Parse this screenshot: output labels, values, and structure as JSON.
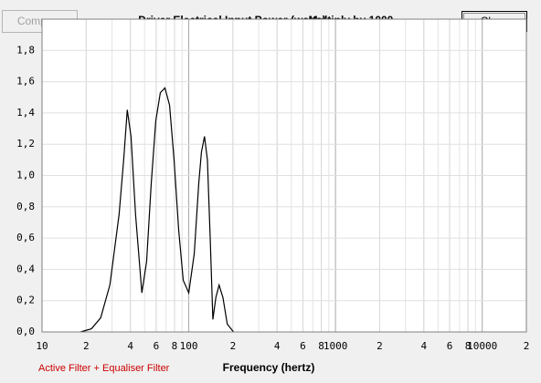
{
  "buttons": {
    "compare": "Compare",
    "close": "Close"
  },
  "chart_data": {
    "type": "line",
    "title": "Driver Electrical Input Power (watts)",
    "subtitle": "Multiply by 1000",
    "x_label": "Frequency (hertz)",
    "x_log": true,
    "grid": true,
    "xlim": [
      10,
      20000
    ],
    "ylim": [
      0,
      2.0
    ],
    "xticks": [
      10,
      {
        "value": 20,
        "label": "2"
      },
      {
        "value": 40,
        "label": "4"
      },
      {
        "value": 60,
        "label": "6"
      },
      {
        "value": 80,
        "label": "8"
      },
      100,
      {
        "value": 200,
        "label": "2"
      },
      {
        "value": 400,
        "label": "4"
      },
      {
        "value": 600,
        "label": "6"
      },
      {
        "value": 800,
        "label": "8"
      },
      1000,
      {
        "value": 2000,
        "label": "2"
      },
      {
        "value": 4000,
        "label": "4"
      },
      {
        "value": 6000,
        "label": "6"
      },
      {
        "value": 8000,
        "label": "8"
      },
      10000,
      {
        "value": 20000,
        "label": "2"
      }
    ],
    "yticks": [
      {
        "value": 0,
        "label": "0,0"
      },
      {
        "value": 0.2,
        "label": "0,2"
      },
      {
        "value": 0.4,
        "label": "0,4"
      },
      {
        "value": 0.6,
        "label": "0,6"
      },
      {
        "value": 0.8,
        "label": "0,8"
      },
      {
        "value": 1.0,
        "label": "1,0"
      },
      {
        "value": 1.2,
        "label": "1,2"
      },
      {
        "value": 1.4,
        "label": "1,4"
      },
      {
        "value": 1.6,
        "label": "1,6"
      },
      {
        "value": 1.8,
        "label": "1,8"
      }
    ],
    "legend_text_color": "#cc0000",
    "x": [
      18.3,
      21.7,
      25.1,
      29.0,
      33.5,
      36.0,
      38.1,
      40.4,
      43.4,
      47.9,
      51.6,
      55.5,
      59.6,
      64.0,
      68.8,
      74.0,
      79.4,
      85.4,
      91.7,
      100,
      109,
      117,
      122,
      128,
      134,
      140,
      146,
      153,
      161,
      171,
      183,
      202
    ],
    "series": [
      {
        "name": "Active Filter + Equaliser Filter",
        "color": "#000000",
        "values": [
          0,
          0.02,
          0.09,
          0.3,
          0.75,
          1.1,
          1.42,
          1.25,
          0.75,
          0.25,
          0.45,
          0.95,
          1.35,
          1.53,
          1.56,
          1.45,
          1.1,
          0.65,
          0.33,
          0.25,
          0.5,
          0.95,
          1.15,
          1.25,
          1.1,
          0.6,
          0.08,
          0.22,
          0.3,
          0.22,
          0.05,
          0
        ]
      }
    ]
  }
}
